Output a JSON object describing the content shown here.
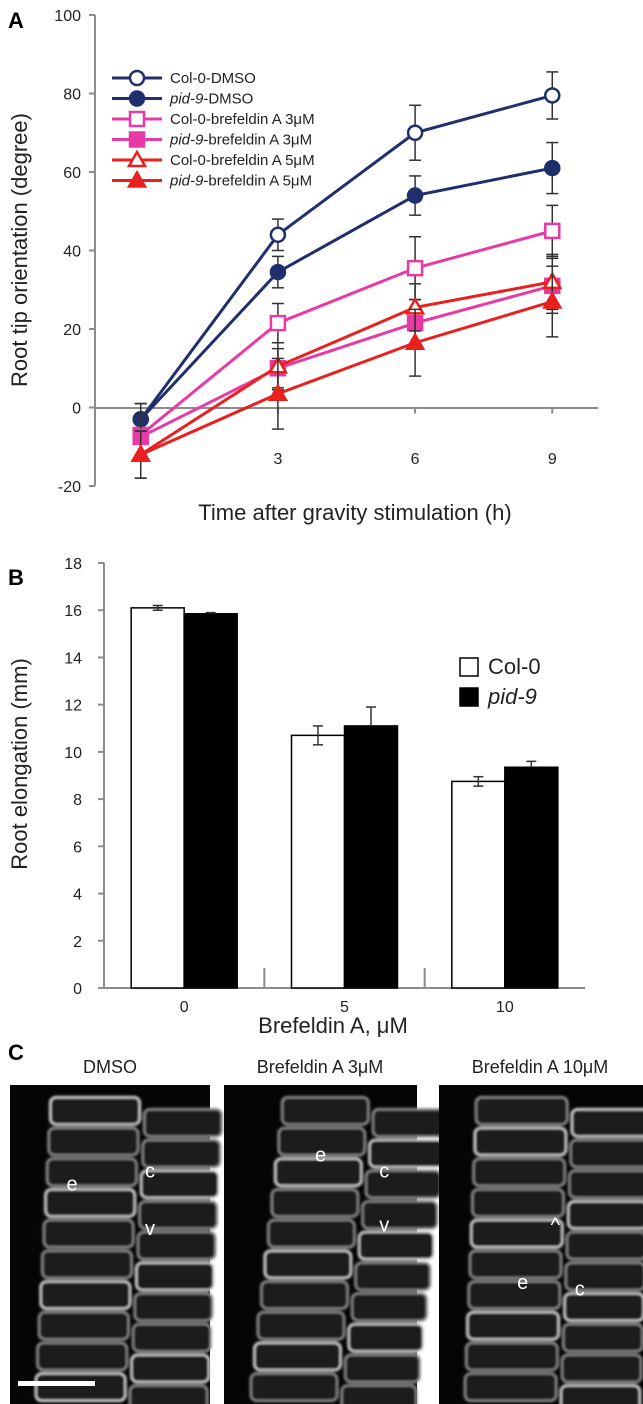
{
  "panel_labels": {
    "a": "A",
    "b": "B",
    "c": "C"
  },
  "chart_data": [
    {
      "type": "line",
      "panel": "A",
      "xlabel": "Time after gravity stimulation (h)",
      "ylabel": "Root tip orientation (degree)",
      "x": [
        0,
        3,
        6,
        9
      ],
      "x_tick_labels": [
        "3",
        "6",
        "9"
      ],
      "y_ticks": [
        "-20",
        "0",
        "20",
        "40",
        "60",
        "80",
        "100"
      ],
      "ylim": [
        -20,
        100
      ],
      "xlim": [
        -1,
        10
      ],
      "legend_position": "top-left",
      "series": [
        {
          "legend_prefix": "Col-0",
          "legend_suffix": "-DMSO",
          "italic_prefix": false,
          "color": "#1f2f6e",
          "marker": "circle-open",
          "values": [
            -3,
            44,
            70,
            79.5
          ],
          "errors": [
            4,
            4,
            7,
            6
          ]
        },
        {
          "legend_prefix": "pid-9",
          "legend_suffix": "-DMSO",
          "italic_prefix": true,
          "color": "#1f2f6e",
          "marker": "circle-filled",
          "values": [
            -3,
            34.5,
            54,
            61
          ],
          "errors": [
            4,
            4,
            5,
            6.5
          ]
        },
        {
          "legend_prefix": "Col-0",
          "legend_suffix": "-brefeldin A 3μM",
          "italic_prefix": false,
          "color": "#e83aa6",
          "marker": "square-open",
          "values": [
            -7,
            21.5,
            35.5,
            45
          ],
          "errors": [
            5,
            5,
            8,
            6.5
          ]
        },
        {
          "legend_prefix": "pid-9",
          "legend_suffix": "-brefeldin A 3μM",
          "italic_prefix": true,
          "color": "#e83aa6",
          "marker": "square-filled",
          "values": [
            -7.5,
            10,
            21.5,
            31
          ],
          "errors": [
            5,
            5,
            6,
            7
          ]
        },
        {
          "legend_prefix": "Col-0",
          "legend_suffix": "-brefeldin A 5μM",
          "italic_prefix": false,
          "color": "#e8201e",
          "marker": "triangle-open",
          "values": [
            -12,
            10.5,
            25.5,
            32
          ],
          "errors": [
            6,
            6,
            6,
            7
          ]
        },
        {
          "legend_prefix": "pid-9",
          "legend_suffix": "-brefeldin A 5μM",
          "italic_prefix": true,
          "color": "#e8201e",
          "marker": "triangle-filled",
          "values": [
            -12,
            3.5,
            16.5,
            27
          ],
          "errors": [
            6,
            9,
            8.5,
            9
          ]
        }
      ]
    },
    {
      "type": "bar",
      "panel": "B",
      "xlabel": "Brefeldin A, μM",
      "ylabel": "Root elongation (mm)",
      "categories": [
        "0",
        "5",
        "10"
      ],
      "y_ticks": [
        "0",
        "2",
        "4",
        "6",
        "8",
        "10",
        "12",
        "14",
        "16",
        "18"
      ],
      "ylim": [
        0,
        18
      ],
      "legend_position": "right",
      "series": [
        {
          "name": "Col-0",
          "italic": false,
          "fill": "#ffffff",
          "values": [
            16.1,
            10.7,
            8.75
          ],
          "errors": [
            0.1,
            0.4,
            0.2
          ]
        },
        {
          "name": "pid-9",
          "italic": true,
          "fill": "#000000",
          "values": [
            15.85,
            11.1,
            9.35
          ],
          "errors": [
            0.05,
            0.8,
            0.25
          ]
        }
      ]
    }
  ],
  "micrographs": [
    {
      "title": "DMSO",
      "labels": [
        {
          "text": "e",
          "fx": 0.31,
          "fy": 0.33
        },
        {
          "text": "c",
          "fx": 0.7,
          "fy": 0.29
        },
        {
          "text": "v",
          "fx": 0.7,
          "fy": 0.47
        }
      ]
    },
    {
      "title": "Brefeldin A 3μM",
      "labels": [
        {
          "text": "e",
          "fx": 0.5,
          "fy": 0.24
        },
        {
          "text": "c",
          "fx": 0.83,
          "fy": 0.29
        },
        {
          "text": "v",
          "fx": 0.83,
          "fy": 0.46
        }
      ]
    },
    {
      "title": "Brefeldin A 10μM",
      "labels": [
        {
          "text": "^",
          "fx": 0.57,
          "fy": 0.46
        },
        {
          "text": "e",
          "fx": 0.41,
          "fy": 0.64
        },
        {
          "text": "c",
          "fx": 0.69,
          "fy": 0.66
        }
      ]
    }
  ]
}
